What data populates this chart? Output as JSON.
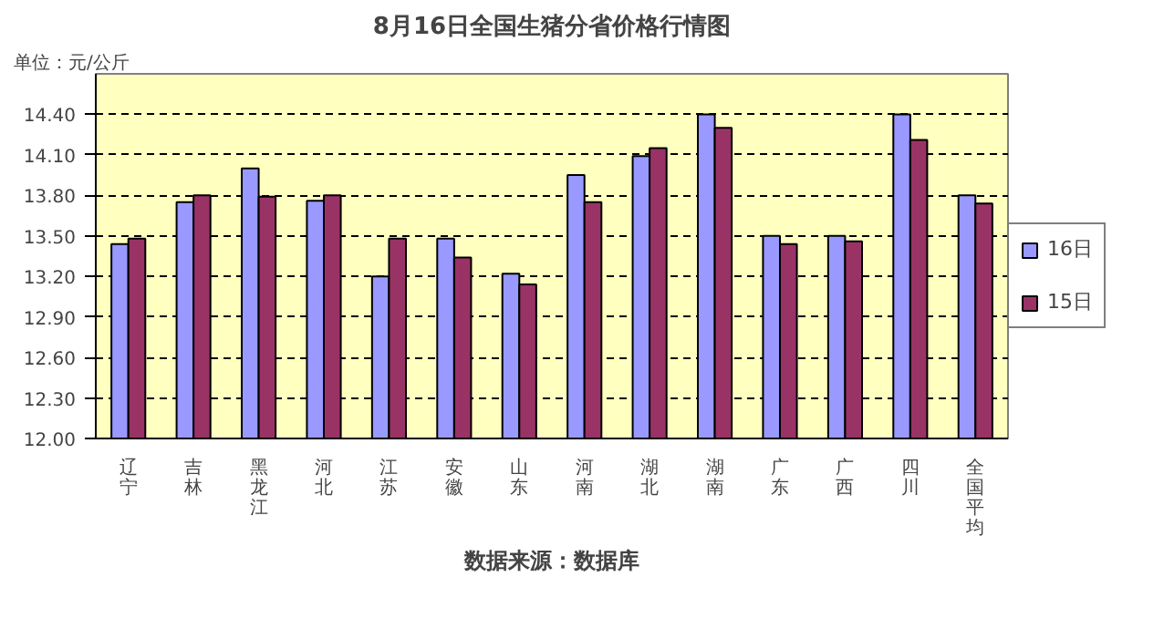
{
  "chart_data": {
    "type": "bar",
    "title": "8月16日全国生猪分省价格行情图",
    "annotations": [
      "单位：元/公斤",
      "数据来源：数据库"
    ],
    "categories": [
      "辽宁",
      "吉林",
      "黑龙江",
      "河北",
      "江苏",
      "安徽",
      "山东",
      "河南",
      "湖北",
      "湖南",
      "广东",
      "广西",
      "四川",
      "全国平均"
    ],
    "series": [
      {
        "name": "16日",
        "color": "#9999ff",
        "values": [
          13.44,
          13.75,
          14.0,
          13.76,
          13.2,
          13.48,
          13.22,
          13.95,
          14.09,
          14.4,
          13.5,
          13.5,
          14.4,
          13.8
        ]
      },
      {
        "name": "15日",
        "color": "#993366",
        "values": [
          13.48,
          13.8,
          13.79,
          13.8,
          13.48,
          13.34,
          13.14,
          13.75,
          14.15,
          14.3,
          13.44,
          13.46,
          14.21,
          13.74
        ]
      }
    ],
    "ylim": [
      12.0,
      14.7
    ],
    "yticks": [
      {
        "value": 12.0,
        "label": "12.00"
      },
      {
        "value": 12.3,
        "label": "12.30"
      },
      {
        "value": 12.6,
        "label": "12.60"
      },
      {
        "value": 12.9,
        "label": "12.90"
      },
      {
        "value": 13.2,
        "label": "13.20"
      },
      {
        "value": 13.5,
        "label": "13.50"
      },
      {
        "value": 13.8,
        "label": "13.80"
      },
      {
        "value": 14.1,
        "label": "14.10"
      },
      {
        "value": 14.4,
        "label": "14.40"
      }
    ],
    "grid": "y",
    "legend": "right"
  }
}
